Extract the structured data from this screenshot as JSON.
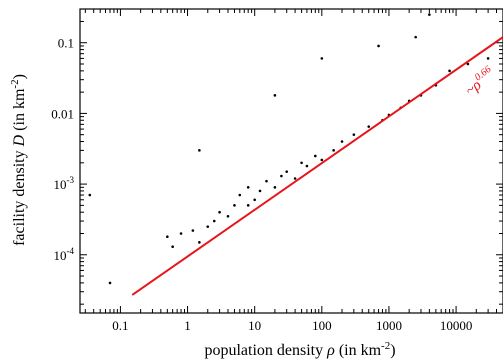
{
  "chart_data": {
    "type": "scatter",
    "title": "",
    "xlabel": {
      "prefix": "population density ",
      "symbol": "ρ",
      "unit_open": " (in km",
      "unit_exp": "-2",
      "unit_close": ")"
    },
    "ylabel": {
      "prefix": "facility density ",
      "symbol": "D",
      "unit_open": "  (in km",
      "unit_exp": "-2",
      "unit_close": ")"
    },
    "x_scale": "log",
    "y_scale": "log",
    "xlim": [
      0.025,
      50000
    ],
    "ylim": [
      1.5e-05,
      0.3
    ],
    "x_ticks": [
      {
        "value": 0.1,
        "label": "0.1"
      },
      {
        "value": 1,
        "label": "1"
      },
      {
        "value": 10,
        "label": "10"
      },
      {
        "value": 100,
        "label": "100"
      },
      {
        "value": 1000,
        "label": "1000"
      },
      {
        "value": 10000,
        "label": "10000"
      }
    ],
    "y_ticks": [
      {
        "value": 0.1,
        "base": "0.1",
        "exp": ""
      },
      {
        "value": 0.01,
        "base": "0.01",
        "exp": ""
      },
      {
        "value": 0.001,
        "base": "10",
        "exp": "-3"
      },
      {
        "value": 0.0001,
        "base": "10",
        "exp": "-4"
      }
    ],
    "grid": false,
    "series": [
      {
        "type": "scatter",
        "color": "#000000",
        "points": [
          [
            0.035,
            0.0007
          ],
          [
            0.07,
            4e-05
          ],
          [
            0.5,
            0.00018
          ],
          [
            0.6,
            0.00013
          ],
          [
            0.8,
            0.0002
          ],
          [
            1.2,
            0.00022
          ],
          [
            1.5,
            0.00015
          ],
          [
            2,
            0.00025
          ],
          [
            2.5,
            0.0003
          ],
          [
            3,
            0.0004
          ],
          [
            4,
            0.00035
          ],
          [
            5,
            0.0005
          ],
          [
            6,
            0.0007
          ],
          [
            8,
            0.0005
          ],
          [
            8,
            0.0009
          ],
          [
            10,
            0.0006
          ],
          [
            12,
            0.0008
          ],
          [
            15,
            0.0011
          ],
          [
            20,
            0.0009
          ],
          [
            25,
            0.0013
          ],
          [
            30,
            0.0015
          ],
          [
            40,
            0.0012
          ],
          [
            50,
            0.002
          ],
          [
            60,
            0.0018
          ],
          [
            80,
            0.0025
          ],
          [
            100,
            0.0022
          ],
          [
            150,
            0.003
          ],
          [
            200,
            0.004
          ],
          [
            300,
            0.005
          ],
          [
            500,
            0.0065
          ],
          [
            800,
            0.008
          ],
          [
            1000,
            0.0095
          ],
          [
            1500,
            0.012
          ],
          [
            2000,
            0.015
          ],
          [
            3000,
            0.018
          ],
          [
            5000,
            0.025
          ],
          [
            8000,
            0.04
          ],
          [
            15000,
            0.05
          ],
          [
            30000,
            0.06
          ],
          [
            2500,
            0.12
          ],
          [
            4000,
            0.25
          ],
          [
            20,
            0.018
          ],
          [
            100,
            0.06
          ],
          [
            1.5,
            0.003
          ],
          [
            700,
            0.09
          ]
        ]
      },
      {
        "type": "line",
        "name": "",
        "color": "#e8141b",
        "fit_exponent": 0.66,
        "points": [
          [
            0.15,
            2.7e-05
          ],
          [
            50000,
            0.12
          ]
        ]
      }
    ],
    "annotation": {
      "prefix": "~",
      "symbol": "ρ",
      "exponent": "0.66",
      "color": "#e8141b"
    }
  }
}
